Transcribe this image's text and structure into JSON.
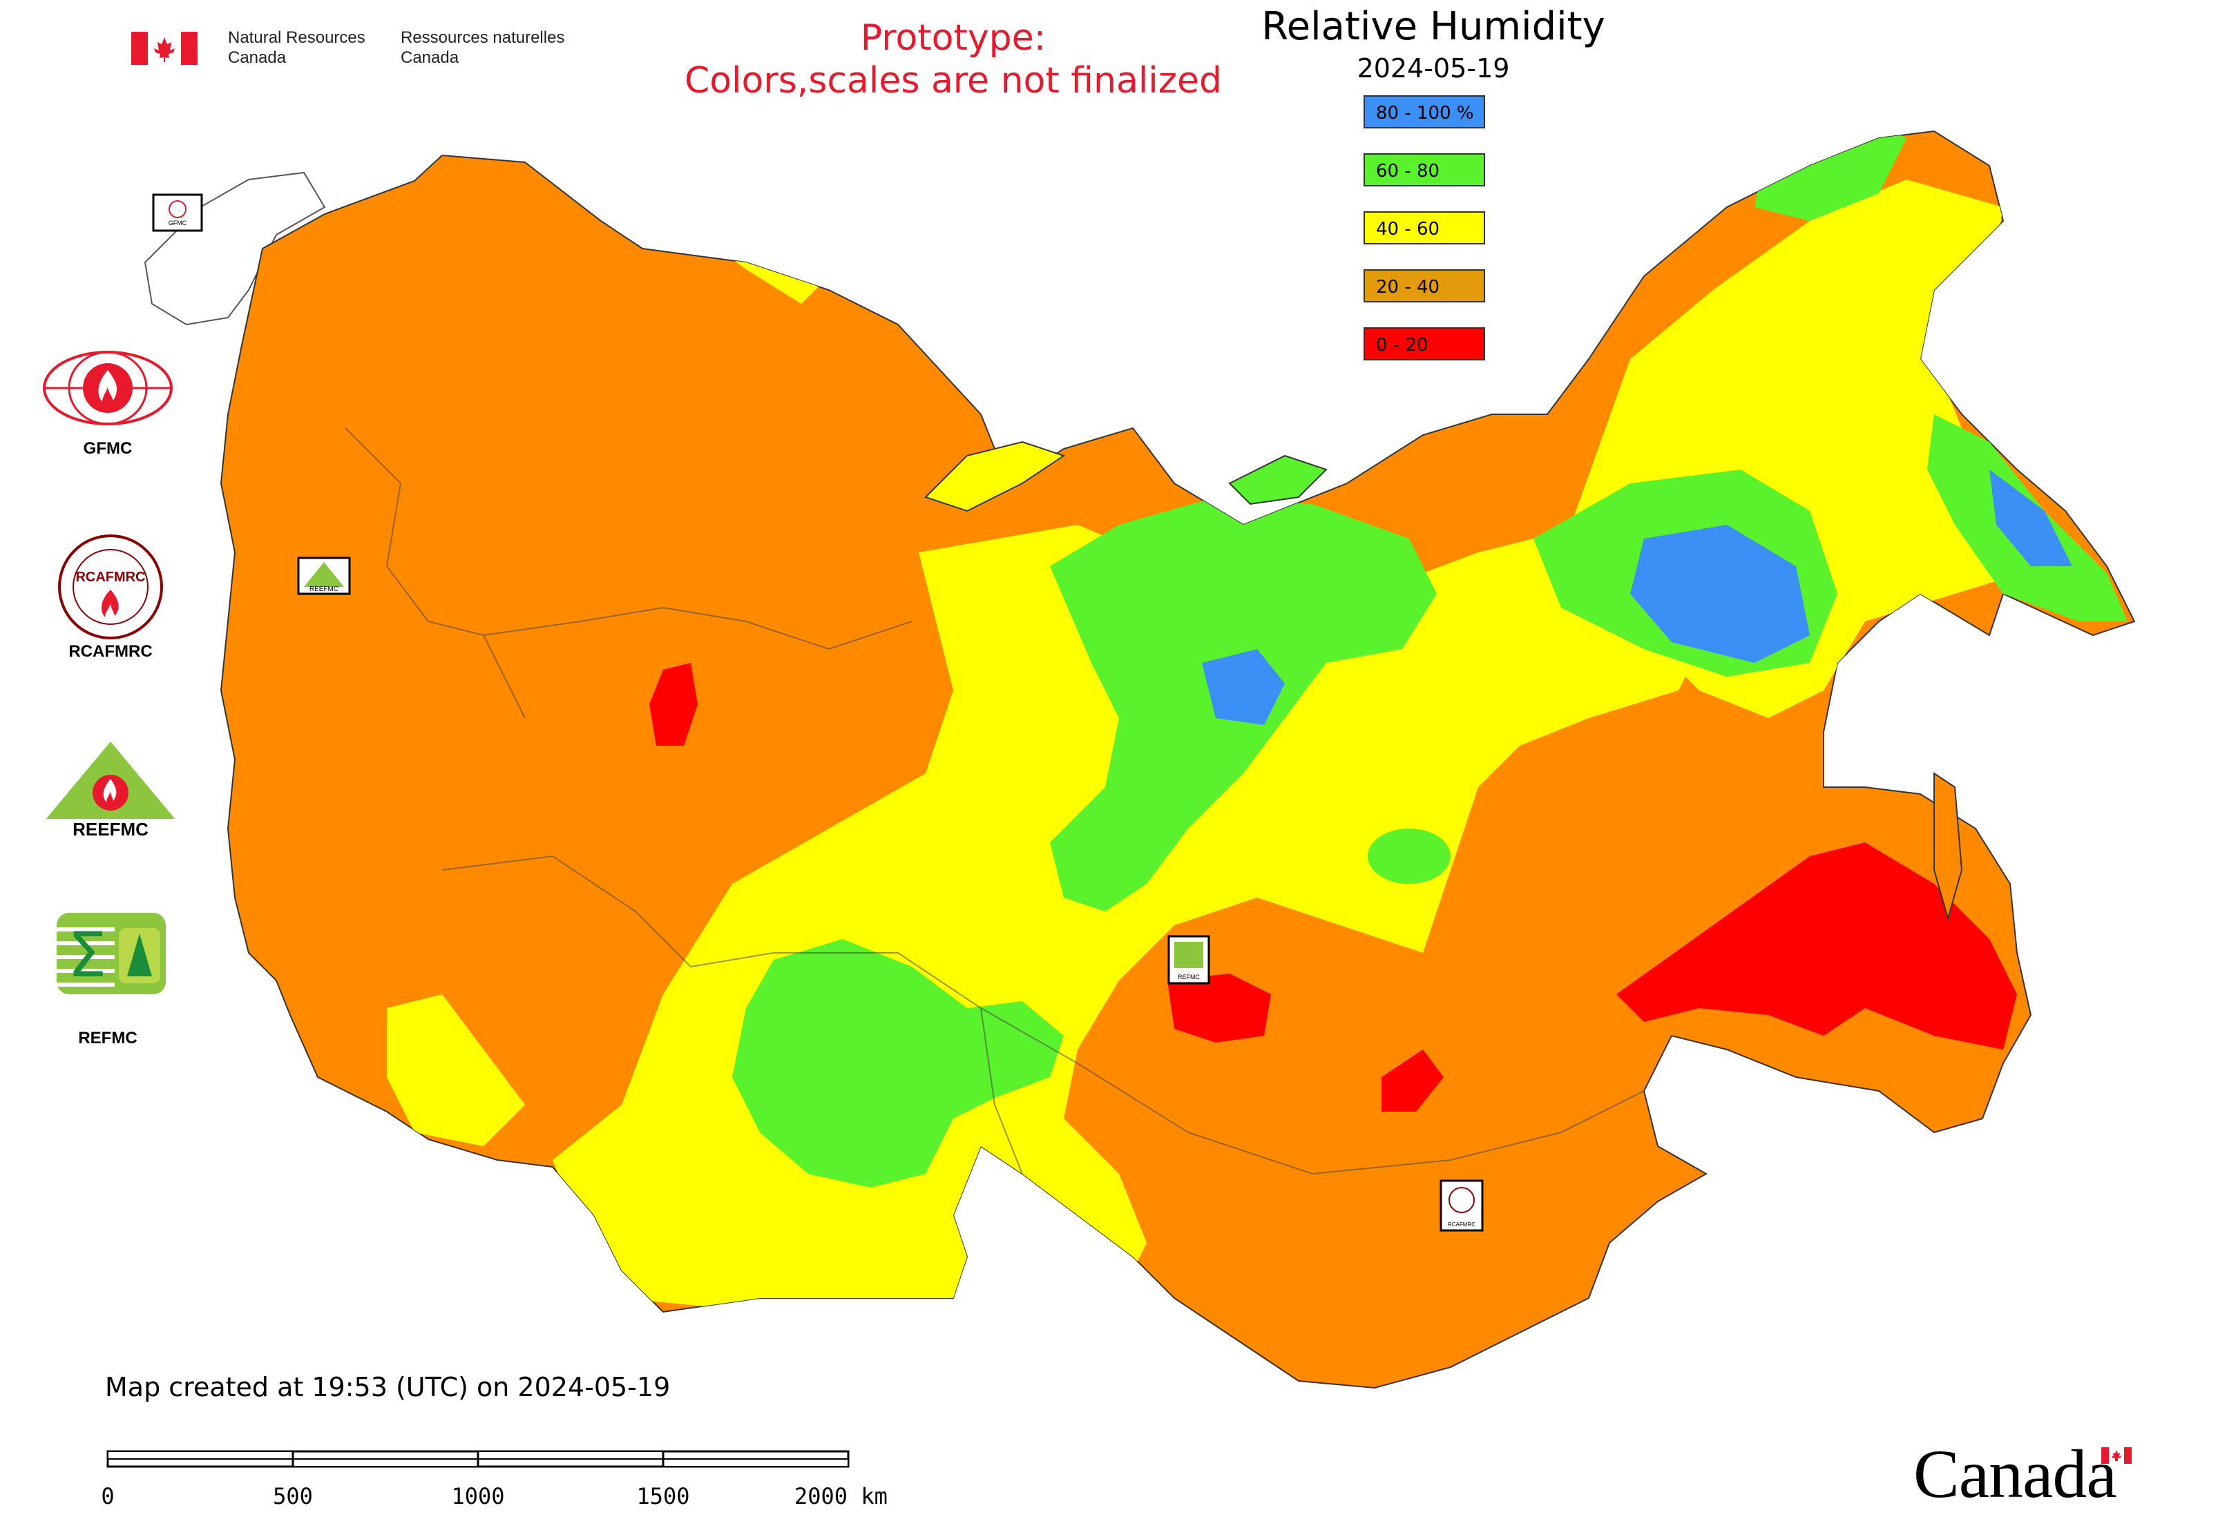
{
  "header": {
    "org_en": "Natural Resources Canada",
    "org_fr": "Ressources naturelles Canada",
    "notice_line1": "Prototype:",
    "notice_line2": "Colors,scales are not finalized"
  },
  "legend": {
    "title": "Relative Humidity",
    "date": "2024-05-19",
    "items": [
      {
        "label": "80 - 100 %",
        "color": "#3b8ff5"
      },
      {
        "label": "60 - 80",
        "color": "#59f22c"
      },
      {
        "label": "40 - 60",
        "color": "#ffff00"
      },
      {
        "label": "20 - 40",
        "color": "#e39b0c"
      },
      {
        "label": "0 - 20",
        "color": "#ff0000"
      }
    ]
  },
  "logos": [
    {
      "caption": "GFMC",
      "icon": "gfmc-logo-icon"
    },
    {
      "caption": "RCAFMRC",
      "icon": "rcafmrc-logo-icon"
    },
    {
      "caption": "",
      "icon": "reefmc-logo-icon",
      "wordmark": "REEFMC"
    },
    {
      "caption": "REFMC",
      "icon": "refmc-logo-icon"
    }
  ],
  "map_markers": [
    {
      "label": "GFMC"
    },
    {
      "label": "REEFMC"
    },
    {
      "label": "REFMC"
    },
    {
      "label": "RCAFMRC"
    }
  ],
  "footer": {
    "created": "Map created at 19:53 (UTC) on 2024-05-19",
    "scale_ticks": [
      "0",
      "500",
      "1000",
      "1500",
      "2000 km"
    ],
    "wordmark": "Canada"
  },
  "colors": {
    "orange": "#ff8a00",
    "yellow": "#ffff00",
    "green": "#59f22c",
    "blue": "#3b8ff5",
    "red": "#ff0000",
    "notice": "#e8192c"
  }
}
